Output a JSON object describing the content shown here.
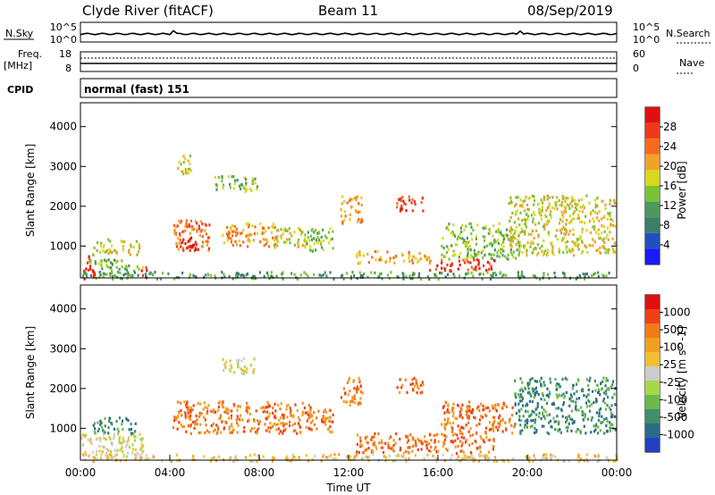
{
  "header": {
    "title": "Clyde River (fitACF)",
    "beam": "Beam 11",
    "date": "08/Sep/2019"
  },
  "strips": {
    "nsky_label": "N.Sky",
    "nsky_ticks": [
      "10^5",
      "10^0"
    ],
    "nsearch_label": "N.Search",
    "nsearch_ticks": [
      "10^5",
      "10^0"
    ],
    "freq_label_line1": "Freq.",
    "freq_label_line2": "[MHz]",
    "freq_ticks": [
      "18",
      "8"
    ],
    "nave_label": "Nave",
    "nave_ticks": [
      "60",
      "0"
    ],
    "cpid_label": "CPID",
    "cpid_text": "normal (fast) 151"
  },
  "chart_data": [
    {
      "type": "heatmap",
      "panel": "power",
      "ylabel": "Slant Range [km]",
      "xlabel": "",
      "y_ticks": [
        1000,
        2000,
        3000,
        4000
      ],
      "ylim": [
        200,
        4600
      ],
      "xlim": [
        0,
        24
      ],
      "colorbar": {
        "label": "Power [dB]",
        "ticks": [
          "4",
          "8",
          "12",
          "16",
          "20",
          "24",
          "28"
        ],
        "colors": [
          "#1a1aff",
          "#2050c0",
          "#3a7f6a",
          "#4a9a5a",
          "#7cc236",
          "#d8d81e",
          "#f0a22a",
          "#f56a1e",
          "#f0381a",
          "#e01010"
        ]
      },
      "features": [
        {
          "t0": 0.0,
          "t1": 0.6,
          "r0": 200,
          "r1": 800,
          "level": 9
        },
        {
          "t0": 0.3,
          "t1": 2.8,
          "r0": 400,
          "r1": 700,
          "level": 4
        },
        {
          "t0": 0.5,
          "t1": 2.6,
          "r0": 800,
          "r1": 1200,
          "level": 5
        },
        {
          "t0": 2.7,
          "t1": 3.0,
          "r0": 200,
          "r1": 500,
          "level": 9
        },
        {
          "t0": 4.1,
          "t1": 5.8,
          "r0": 900,
          "r1": 1700,
          "level": 7
        },
        {
          "t0": 4.5,
          "t1": 5.2,
          "r0": 900,
          "r1": 1300,
          "level": 9
        },
        {
          "t0": 4.3,
          "t1": 5.0,
          "r0": 2800,
          "r1": 3300,
          "level": 5
        },
        {
          "t0": 6.3,
          "t1": 8.7,
          "r0": 1000,
          "r1": 1600,
          "level": 6
        },
        {
          "t0": 8.6,
          "t1": 10.3,
          "r0": 1000,
          "r1": 1500,
          "level": 5
        },
        {
          "t0": 10.0,
          "t1": 11.3,
          "r0": 900,
          "r1": 1500,
          "level": 4
        },
        {
          "t0": 11.6,
          "t1": 12.6,
          "r0": 1600,
          "r1": 2300,
          "level": 6
        },
        {
          "t0": 14.1,
          "t1": 15.3,
          "r0": 1900,
          "r1": 2300,
          "level": 8
        },
        {
          "t0": 12.3,
          "t1": 15.6,
          "r0": 600,
          "r1": 900,
          "level": 6
        },
        {
          "t0": 15.6,
          "t1": 18.5,
          "r0": 400,
          "r1": 700,
          "level": 8
        },
        {
          "t0": 16.1,
          "t1": 19.6,
          "r0": 700,
          "r1": 1600,
          "level": 4
        },
        {
          "t0": 19.1,
          "t1": 23.9,
          "r0": 800,
          "r1": 2300,
          "level": 5
        },
        {
          "t0": 5.9,
          "t1": 7.9,
          "r0": 2400,
          "r1": 2800,
          "level": 4
        },
        {
          "t0": 0.0,
          "t1": 24.0,
          "r0": 200,
          "r1": 380,
          "level": 3
        }
      ]
    },
    {
      "type": "heatmap",
      "panel": "velocity",
      "ylabel": "Slant Range [km]",
      "xlabel": "Time UT",
      "x_ticks": [
        "00:00",
        "04:00",
        "08:00",
        "12:00",
        "16:00",
        "20:00",
        "00:00"
      ],
      "y_ticks": [
        1000,
        2000,
        3000,
        4000
      ],
      "ylim": [
        200,
        4600
      ],
      "xlim": [
        0,
        24
      ],
      "colorbar": {
        "label": "Velocity [m s^-1]",
        "ticks": [
          "1000",
          "500",
          "100",
          "25",
          "-25",
          "-100",
          "-500",
          "-1000"
        ],
        "colors": [
          "#2040c0",
          "#2d6a8a",
          "#3f8f6a",
          "#6cb84a",
          "#a8d84a",
          "#cccccc",
          "#f0c030",
          "#f0a020",
          "#f07a18",
          "#f04018",
          "#e01010"
        ]
      },
      "features": [
        {
          "t0": 0.0,
          "t1": 2.8,
          "r0": 300,
          "r1": 900,
          "level": 5
        },
        {
          "t0": 0.5,
          "t1": 2.5,
          "r0": 900,
          "r1": 1300,
          "level": 2
        },
        {
          "t0": 4.1,
          "t1": 10.3,
          "r0": 900,
          "r1": 1700,
          "level": 8
        },
        {
          "t0": 10.0,
          "t1": 11.3,
          "r0": 900,
          "r1": 1500,
          "level": 8
        },
        {
          "t0": 11.6,
          "t1": 12.6,
          "r0": 1600,
          "r1": 2300,
          "level": 8
        },
        {
          "t0": 14.1,
          "t1": 15.3,
          "r0": 1900,
          "r1": 2300,
          "level": 8
        },
        {
          "t0": 12.3,
          "t1": 18.5,
          "r0": 400,
          "r1": 900,
          "level": 8
        },
        {
          "t0": 16.1,
          "t1": 19.4,
          "r0": 900,
          "r1": 1700,
          "level": 8
        },
        {
          "t0": 19.4,
          "t1": 23.9,
          "r0": 900,
          "r1": 2300,
          "level": 2
        },
        {
          "t0": 6.3,
          "t1": 7.9,
          "r0": 2400,
          "r1": 2800,
          "level": 5
        },
        {
          "t0": 0.0,
          "t1": 24.0,
          "r0": 200,
          "r1": 380,
          "level": 6
        }
      ]
    }
  ]
}
